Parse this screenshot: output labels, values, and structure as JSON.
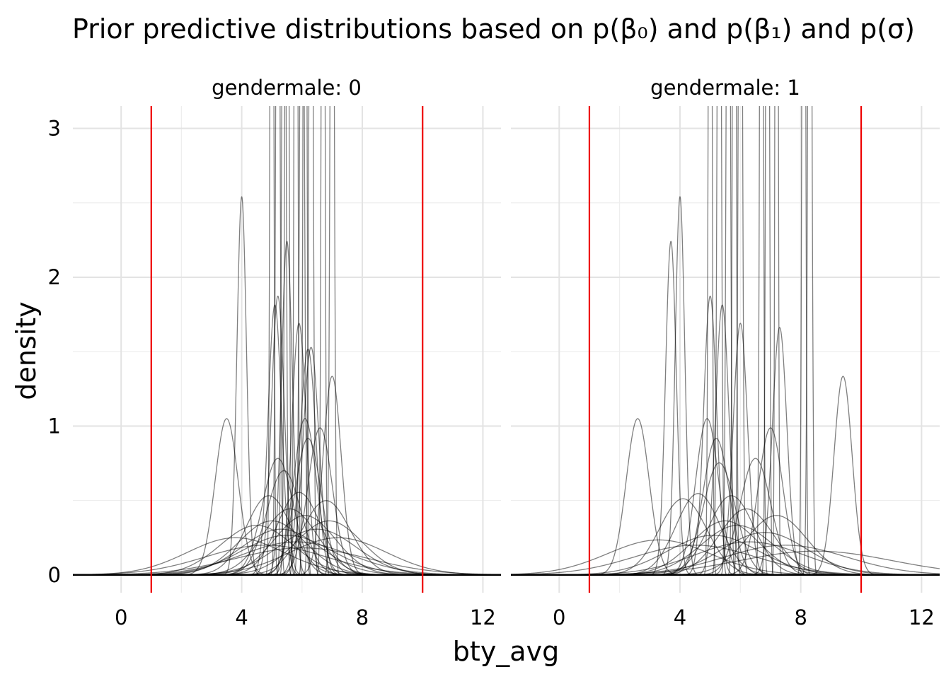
{
  "chart_data": {
    "type": "line",
    "title": "Prior predictive distributions based on p(β₀) and p(β₁) and p(σ)",
    "xlabel": "bty_avg",
    "ylabel": "density",
    "xlim": [
      -1.6,
      12.6
    ],
    "ylim": [
      -0.12,
      3.15
    ],
    "x_ticks": [
      0,
      4,
      8,
      12
    ],
    "y_ticks": [
      0,
      1,
      2,
      3
    ],
    "grid": true,
    "legend": "none",
    "reference_lines": {
      "x": [
        1,
        10
      ],
      "color": "#ee0000"
    },
    "curve_color": "rgba(0,0,0,0.5)",
    "panels": [
      {
        "label": "gendermale: 0",
        "curves": [
          {
            "mean": 3.5,
            "sd": 0.38
          },
          {
            "mean": 4.0,
            "sd": 0.157
          },
          {
            "mean": 5.1,
            "sd": 0.22
          },
          {
            "mean": 5.2,
            "sd": 0.213
          },
          {
            "mean": 5.5,
            "sd": 0.178
          },
          {
            "mean": 5.9,
            "sd": 0.236
          },
          {
            "mean": 6.2,
            "sd": 0.263
          },
          {
            "mean": 6.3,
            "sd": 0.261
          },
          {
            "mean": 7.0,
            "sd": 0.299
          },
          {
            "mean": 6.6,
            "sd": 0.404
          },
          {
            "mean": 6.1,
            "sd": 0.38
          },
          {
            "mean": 6.2,
            "sd": 0.435
          },
          {
            "mean": 5.2,
            "sd": 0.51
          },
          {
            "mean": 5.4,
            "sd": 0.57
          },
          {
            "mean": 4.9,
            "sd": 0.75
          },
          {
            "mean": 5.9,
            "sd": 0.72
          },
          {
            "mean": 6.8,
            "sd": 0.8
          },
          {
            "mean": 5.6,
            "sd": 0.9
          },
          {
            "mean": 6.1,
            "sd": 1.0
          },
          {
            "mean": 4.5,
            "sd": 1.2
          },
          {
            "mean": 5.0,
            "sd": 1.1
          },
          {
            "mean": 6.5,
            "sd": 1.3
          },
          {
            "mean": 5.5,
            "sd": 1.5
          },
          {
            "mean": 5.8,
            "sd": 1.8
          },
          {
            "mean": 4.8,
            "sd": 2.0
          },
          {
            "mean": 6.0,
            "sd": 2.2
          },
          {
            "mean": 3.8,
            "sd": 1.6
          },
          {
            "mean": 7.2,
            "sd": 1.6
          },
          {
            "mean": 5.3,
            "sd": 1.3
          },
          {
            "mean": 6.9,
            "sd": 1.1
          },
          {
            "mean": 5.2,
            "sd": 0.06
          },
          {
            "mean": 5.5,
            "sd": 0.06
          },
          {
            "mean": 5.8,
            "sd": 0.05
          },
          {
            "mean": 6.0,
            "sd": 0.07
          },
          {
            "mean": 6.3,
            "sd": 0.06
          },
          {
            "mean": 6.7,
            "sd": 0.05
          },
          {
            "mean": 7.0,
            "sd": 0.06
          },
          {
            "mean": 5.0,
            "sd": 0.05
          },
          {
            "mean": 6.1,
            "sd": 0.05
          },
          {
            "mean": 5.4,
            "sd": 0.06
          }
        ]
      },
      {
        "label": "gendermale: 1",
        "curves": [
          {
            "mean": 2.6,
            "sd": 0.38
          },
          {
            "mean": 3.7,
            "sd": 0.178
          },
          {
            "mean": 4.0,
            "sd": 0.157
          },
          {
            "mean": 5.0,
            "sd": 0.213
          },
          {
            "mean": 5.4,
            "sd": 0.22
          },
          {
            "mean": 6.0,
            "sd": 0.236
          },
          {
            "mean": 7.3,
            "sd": 0.24
          },
          {
            "mean": 9.4,
            "sd": 0.299
          },
          {
            "mean": 4.9,
            "sd": 0.38
          },
          {
            "mean": 7.0,
            "sd": 0.404
          },
          {
            "mean": 5.2,
            "sd": 0.435
          },
          {
            "mean": 6.5,
            "sd": 0.51
          },
          {
            "mean": 5.3,
            "sd": 0.53
          },
          {
            "mean": 4.6,
            "sd": 0.73
          },
          {
            "mean": 5.7,
            "sd": 0.75
          },
          {
            "mean": 7.2,
            "sd": 1.0
          },
          {
            "mean": 6.2,
            "sd": 0.9
          },
          {
            "mean": 4.1,
            "sd": 0.78
          },
          {
            "mean": 5.9,
            "sd": 1.2
          },
          {
            "mean": 3.3,
            "sd": 1.7
          },
          {
            "mean": 6.8,
            "sd": 1.4
          },
          {
            "mean": 5.1,
            "sd": 1.5
          },
          {
            "mean": 7.5,
            "sd": 2.0
          },
          {
            "mean": 8.5,
            "sd": 2.5
          },
          {
            "mean": 4.5,
            "sd": 2.0
          },
          {
            "mean": 6.3,
            "sd": 1.8
          },
          {
            "mean": 5.5,
            "sd": 1.1
          },
          {
            "mean": 5.0,
            "sd": 0.05
          },
          {
            "mean": 5.6,
            "sd": 0.06
          },
          {
            "mean": 5.8,
            "sd": 0.05
          },
          {
            "mean": 6.0,
            "sd": 0.06
          },
          {
            "mean": 6.7,
            "sd": 0.05
          },
          {
            "mean": 7.2,
            "sd": 0.04
          },
          {
            "mean": 8.1,
            "sd": 0.05
          },
          {
            "mean": 8.3,
            "sd": 0.06
          },
          {
            "mean": 5.3,
            "sd": 0.06
          },
          {
            "mean": 6.9,
            "sd": 0.05
          }
        ]
      }
    ]
  }
}
